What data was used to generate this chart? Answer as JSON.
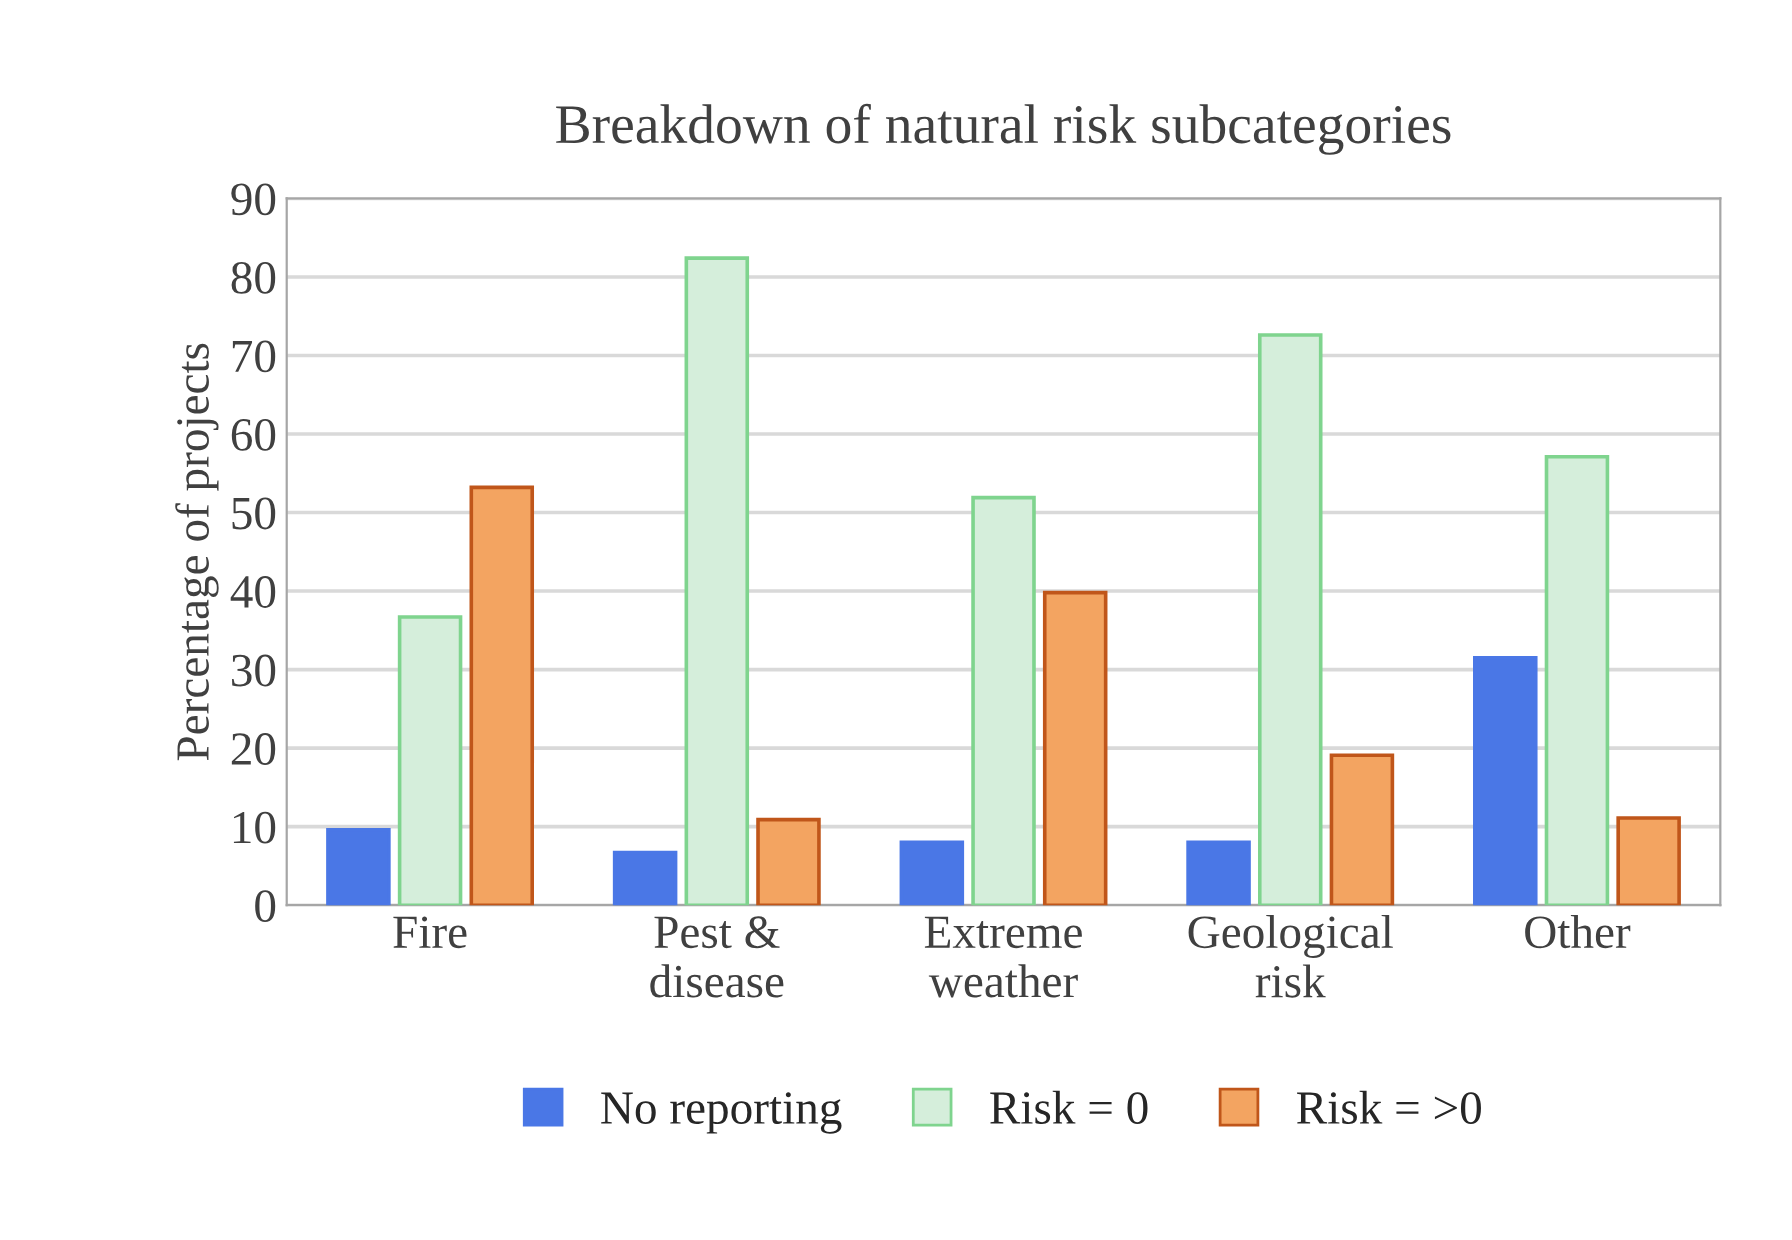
{
  "chart_data": {
    "type": "bar",
    "title": "Breakdown of natural risk subcategories",
    "ylabel": "Percentage of projects",
    "categories": [
      "Fire",
      "Pest &\ndisease",
      "Extreme\nweather",
      "Geological\nrisk",
      "Other"
    ],
    "series": [
      {
        "name": "No reporting",
        "color": "#4a77e6",
        "values": [
          9.6,
          6.7,
          8.0,
          8.0,
          31.5
        ]
      },
      {
        "name": "Risk = 0",
        "color": "#d5eedb",
        "values": [
          36.7,
          82.4,
          51.9,
          72.6,
          57.1
        ]
      },
      {
        "name": "Risk = >0",
        "color": "#f3a461",
        "values": [
          53.2,
          10.9,
          39.8,
          19.1,
          11.1
        ]
      }
    ],
    "ylim": [
      0,
      90
    ],
    "yticks": [
      0,
      10,
      20,
      30,
      40,
      50,
      60,
      70,
      80,
      90
    ],
    "grid": "y",
    "legend": "bottom"
  }
}
